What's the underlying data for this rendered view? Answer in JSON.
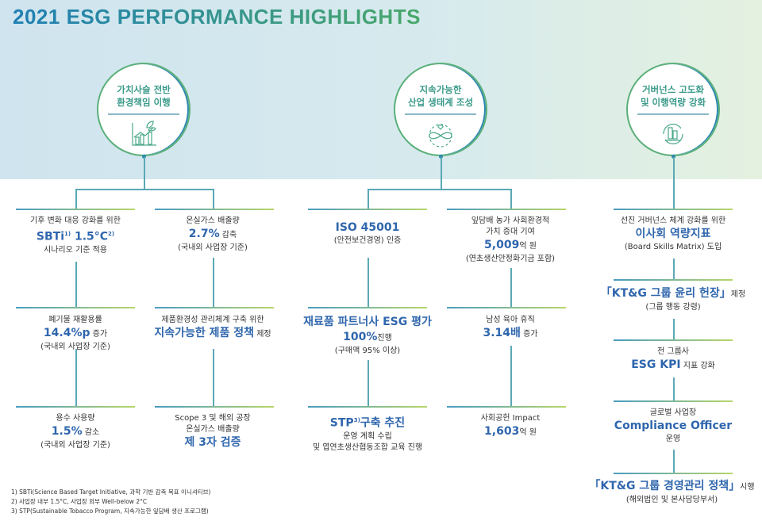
{
  "title": "2021 ESG PERFORMANCE HIGHLIGHTS",
  "pillars": [
    {
      "line1": "가치사슬 전반",
      "line2": "환경책임 이행",
      "icon": "growth-chart-leaf-icon"
    },
    {
      "line1": "지속가능한",
      "line2": "산업 생태계 조성",
      "icon": "infinity-heart-icon"
    },
    {
      "line1": "거버넌스 고도화",
      "line2": "및 이행역량 강화",
      "icon": "building-cycle-icon"
    }
  ],
  "c1": [
    {
      "a": "기후 변화 대응 강화를 위한",
      "b": "SBTi",
      "sup1": "1)",
      "b2": " 1.5°C",
      "sup2": "2)",
      "c": "시나리오 기준 적용"
    },
    {
      "a": "폐기물 재활용률",
      "b": "14.4%p",
      "b_s": " 증가",
      "c": "(국내외 사업장 기준)"
    },
    {
      "a": "용수 사용량",
      "b": "1.5%",
      "b_s": " 감소",
      "c": "(국내외 사업장 기준)"
    }
  ],
  "c2": [
    {
      "a": "온실가스 배출량",
      "b": "2.7%",
      "b_s": " 감축",
      "c": "(국내외 사업장 기준)"
    },
    {
      "a": "제품환경성 관리체계 구축 위한",
      "b": "지속가능한 제품 정책",
      "b_s": " 제정"
    },
    {
      "a": "Scope 3 및 해외 공장",
      "a2": "온실가스 배출량",
      "b": "제 3자 검증"
    }
  ],
  "c3": [
    {
      "b": "ISO 45001",
      "c": "(안전보건경영) 인증"
    },
    {
      "b": "재료품 파트너사 ESG 평가",
      "b2": "100%",
      "b_s": "진행",
      "c": "(구매액 95% 이상)"
    },
    {
      "b": "STP",
      "sup": "3)",
      "b2": "구축 추진",
      "c": "운영 계획 수립",
      "c2": "및 엽연초생산협동조합 교육 진행"
    }
  ],
  "c4": [
    {
      "a": "잎담배 농가 사회환경적",
      "a2": "가치 증대 기여",
      "b": "5,009",
      "b_s": "억 원",
      "c": "(연초생산안정화기금 포함)"
    },
    {
      "a": "남성 육아 휴직",
      "b": "3.14배",
      "b_s": " 증가"
    },
    {
      "a": "사회공헌 Impact",
      "b": "1,603",
      "b_s": "억 원"
    }
  ],
  "c5": [
    {
      "a": "선진 거버넌스 체계 강화를 위한",
      "b": "이사회 역량지표",
      "c": "(Board Skills Matrix) 도입"
    },
    {
      "b": "「KT&G 그룹 윤리 헌장」",
      "b_s": "제정",
      "c": "(그룹 행동 강령)"
    },
    {
      "a": "전 그룹사",
      "b": "ESG KPI",
      "b_s": " 지표 강화"
    },
    {
      "a": "글로벌 사업장",
      "b": "Compliance Officer",
      "c": "운영"
    },
    {
      "b": "「KT&G 그룹 경영관리 정책」",
      "b_s": "시행",
      "c": "(해외법인 및 본사담당부서)"
    }
  ],
  "footnotes": [
    "1) SBTi(Science Based Target Initiative, 과학 기반 감축 목표 이니셔티브)",
    "2) 사업장 내부 1.5°C, 사업장 외부 Well-below 2°C",
    "3) STP(Sustainable Tobacco Program, 지속가능한 잎담배 생산 프로그램)"
  ]
}
